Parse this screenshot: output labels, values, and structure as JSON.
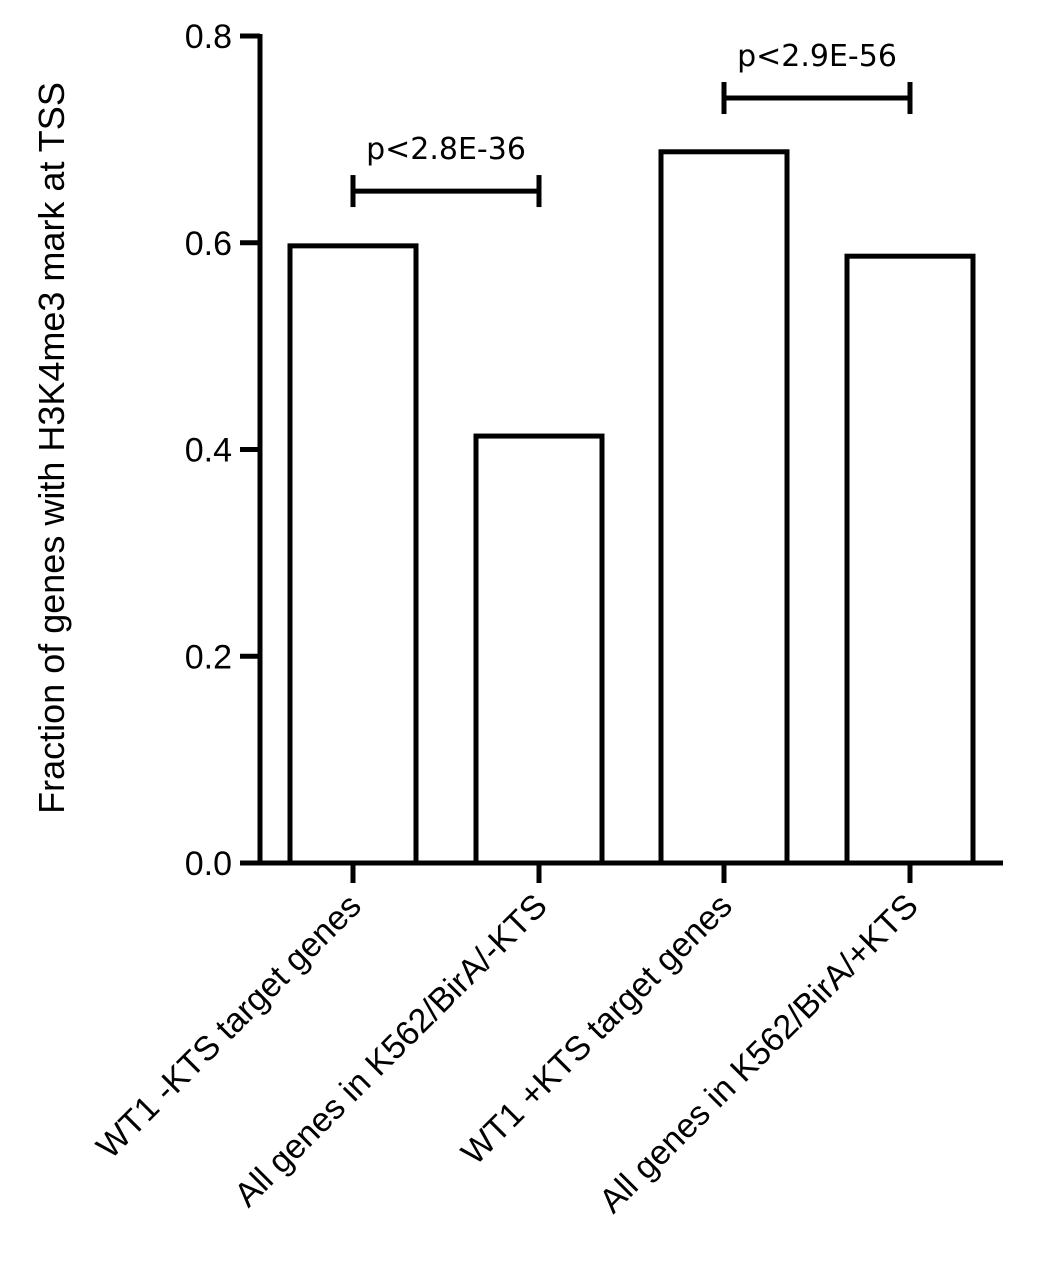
{
  "chart_data": {
    "type": "bar",
    "title": "",
    "xlabel": "",
    "ylabel": "Fraction of genes with H3K4me3 mark at TSS",
    "categories": [
      "WT1 -KTS target genes",
      "All genes in K562/BirA/-KTS",
      "WT1 +KTS target genes",
      "All genes in K562/BirA/+KTS"
    ],
    "values": [
      0.597,
      0.413,
      0.688,
      0.587
    ],
    "ylim": [
      0,
      0.8
    ],
    "yticks": [
      "0.0",
      "0.2",
      "0.4",
      "0.6",
      "0.8"
    ],
    "ytick_values": [
      0,
      0.2,
      0.4,
      0.6,
      0.8
    ],
    "grid": false,
    "bar_fill": "#ffffff",
    "bar_stroke": "#000000",
    "annotations": [
      {
        "text": "p<2.8E-36",
        "from": 0,
        "to": 1,
        "y": 0.65
      },
      {
        "text": "p<2.9E-56",
        "from": 2,
        "to": 3,
        "y": 0.74
      }
    ]
  }
}
